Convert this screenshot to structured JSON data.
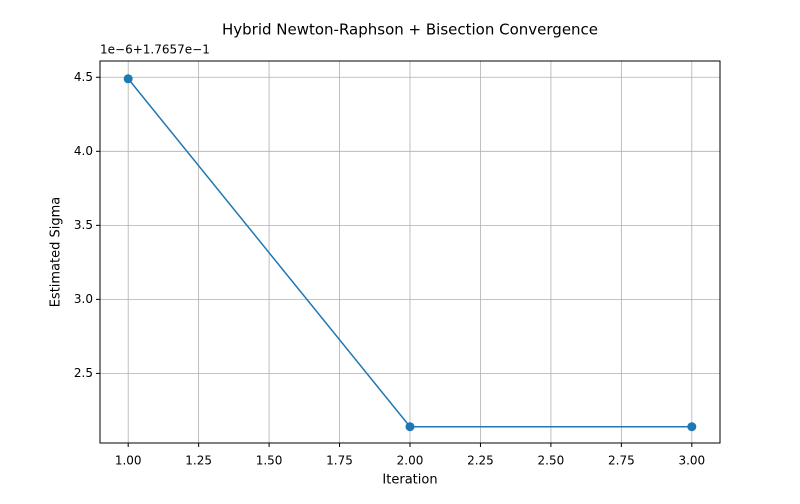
{
  "chart_data": {
    "type": "line",
    "title": "Hybrid Newton-Raphson + Bisection Convergence",
    "xlabel": "Iteration",
    "ylabel": "Estimated Sigma",
    "y_offset_label": "1e−6+1.7657e−1",
    "x": [
      1,
      2,
      3
    ],
    "series": [
      {
        "name": "Estimated Sigma",
        "color": "#1f77b4",
        "values": [
          4.49,
          2.14,
          2.14
        ]
      }
    ],
    "xlim": [
      0.9,
      3.1
    ],
    "xticks": [
      {
        "value": 1,
        "label": "1.00"
      },
      {
        "value": 1.25,
        "label": "1.25"
      },
      {
        "value": 1.5,
        "label": "1.50"
      },
      {
        "value": 1.75,
        "label": "1.75"
      },
      {
        "value": 2,
        "label": "2.00"
      },
      {
        "value": 2.25,
        "label": "2.25"
      },
      {
        "value": 2.5,
        "label": "2.50"
      },
      {
        "value": 2.75,
        "label": "2.75"
      },
      {
        "value": 3,
        "label": "3.00"
      }
    ],
    "ylim": [
      2.03,
      4.61
    ],
    "yticks": [
      2.5,
      {
        "value": 3,
        "label": "3.0"
      },
      3.5,
      {
        "value": 4,
        "label": "4.0"
      },
      4.5
    ],
    "grid": true
  }
}
